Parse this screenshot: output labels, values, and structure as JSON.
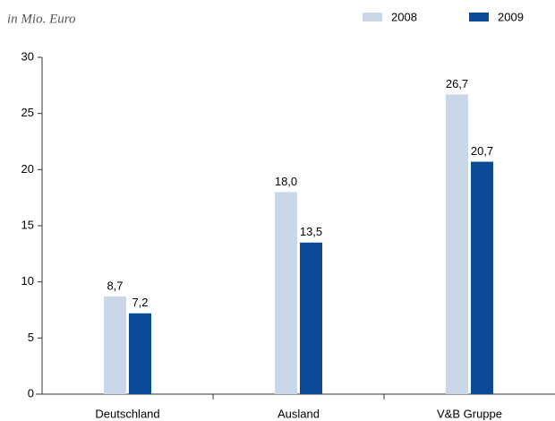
{
  "chart_data": {
    "type": "bar",
    "subtitle": "in Mio. Euro",
    "categories": [
      "Deutschland",
      "Ausland",
      "V&B Gruppe"
    ],
    "series": [
      {
        "name": "2008",
        "color": "#c9d7e8",
        "values": [
          8.7,
          18.0,
          26.7
        ],
        "value_labels": [
          "8,7",
          "18,0",
          "26,7"
        ]
      },
      {
        "name": "2009",
        "color": "#0b4a96",
        "values": [
          7.2,
          13.5,
          20.7
        ],
        "value_labels": [
          "7,2",
          "13,5",
          "20,7"
        ]
      }
    ],
    "ylim": [
      0,
      30
    ],
    "yticks": [
      0,
      5,
      10,
      15,
      20,
      25,
      30
    ],
    "legend": "top-right"
  }
}
